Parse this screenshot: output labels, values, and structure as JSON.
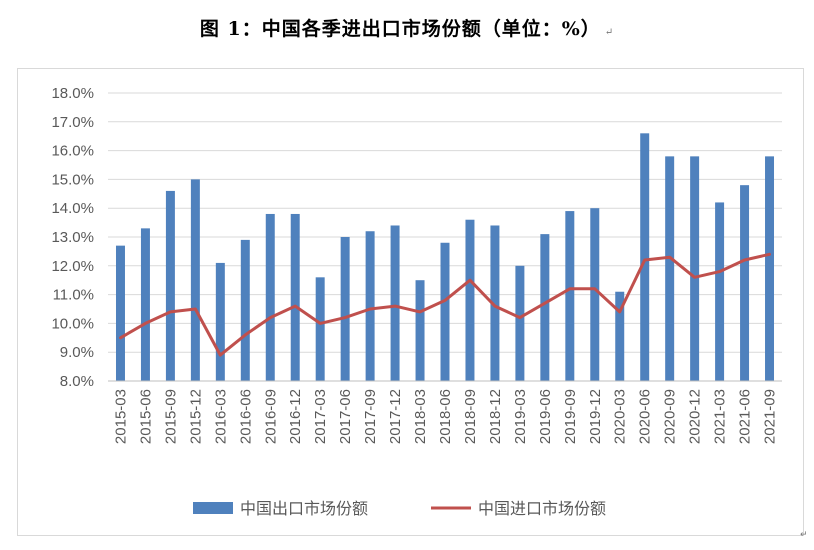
{
  "figure_title": "图 1：中国各季进出口市场份额（单位：%）",
  "paragraph_mark": "↵",
  "colors": {
    "bar": "#4f81bd",
    "line": "#c0504d",
    "grid": "#d9d9d9",
    "axis_text": "#595959",
    "frame": "#d9d9d9"
  },
  "chart_data": {
    "type": "bar",
    "title": "",
    "xlabel": "",
    "ylabel": "",
    "ylim": [
      8.0,
      18.0
    ],
    "y_ticks": [
      "8.0%",
      "9.0%",
      "10.0%",
      "11.0%",
      "12.0%",
      "13.0%",
      "14.0%",
      "15.0%",
      "16.0%",
      "17.0%",
      "18.0%"
    ],
    "grid": true,
    "legend_position": "bottom",
    "categories": [
      "2015-03",
      "2015-06",
      "2015-09",
      "2015-12",
      "2016-03",
      "2016-06",
      "2016-09",
      "2016-12",
      "2017-03",
      "2017-06",
      "2017-09",
      "2017-12",
      "2018-03",
      "2018-06",
      "2018-09",
      "2018-12",
      "2019-03",
      "2019-06",
      "2019-09",
      "2019-12",
      "2020-03",
      "2020-06",
      "2020-09",
      "2020-12",
      "2021-03",
      "2021-06",
      "2021-09"
    ],
    "series": [
      {
        "name": "中国出口市场份额",
        "type": "bar",
        "values": [
          12.7,
          13.3,
          14.6,
          15.0,
          12.1,
          12.9,
          13.8,
          13.8,
          11.6,
          13.0,
          13.2,
          13.4,
          11.5,
          12.8,
          13.6,
          13.4,
          12.0,
          13.1,
          13.9,
          14.0,
          11.1,
          16.6,
          15.8,
          15.8,
          14.2,
          14.8,
          15.8
        ]
      },
      {
        "name": "中国进口市场份额",
        "type": "line",
        "values": [
          9.5,
          10.0,
          10.4,
          10.5,
          8.9,
          9.6,
          10.2,
          10.6,
          10.0,
          10.2,
          10.5,
          10.6,
          10.4,
          10.8,
          11.5,
          10.6,
          10.2,
          10.7,
          11.2,
          11.2,
          10.4,
          12.2,
          12.3,
          11.6,
          11.8,
          12.2,
          12.4
        ]
      }
    ]
  }
}
